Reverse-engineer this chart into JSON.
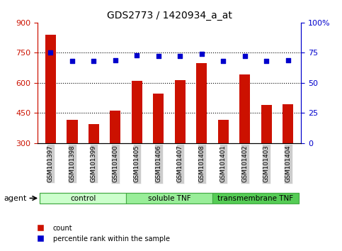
{
  "title": "GDS2773 / 1420934_a_at",
  "categories": [
    "GSM101397",
    "GSM101398",
    "GSM101399",
    "GSM101400",
    "GSM101405",
    "GSM101406",
    "GSM101407",
    "GSM101408",
    "GSM101401",
    "GSM101402",
    "GSM101403",
    "GSM101404"
  ],
  "count_values": [
    840,
    415,
    395,
    460,
    610,
    545,
    615,
    700,
    415,
    640,
    490,
    495
  ],
  "percentile_values": [
    75,
    68,
    68,
    69,
    73,
    72,
    72,
    74,
    68,
    72,
    68,
    69
  ],
  "ylim_left": [
    300,
    900
  ],
  "ylim_right": [
    0,
    100
  ],
  "yticks_left": [
    300,
    450,
    600,
    750,
    900
  ],
  "yticks_right": [
    0,
    25,
    50,
    75,
    100
  ],
  "ytick_labels_right": [
    "0",
    "25",
    "50",
    "75",
    "100%"
  ],
  "bar_color": "#cc1100",
  "dot_color": "#0000cc",
  "hgrid_values": [
    450,
    600,
    750
  ],
  "tick_bg_color": "#cccccc",
  "groups": [
    {
      "label": "control",
      "start": 0,
      "end": 4,
      "color": "#ccffcc",
      "edge_color": "#44aa44"
    },
    {
      "label": "soluble TNF",
      "start": 4,
      "end": 8,
      "color": "#99ee99",
      "edge_color": "#44aa44"
    },
    {
      "label": "transmembrane TNF",
      "start": 8,
      "end": 12,
      "color": "#55cc55",
      "edge_color": "#44aa44"
    }
  ],
  "agent_label": "agent",
  "legend_labels": [
    "count",
    "percentile rank within the sample"
  ],
  "title_fontsize": 10,
  "bar_width": 0.5
}
